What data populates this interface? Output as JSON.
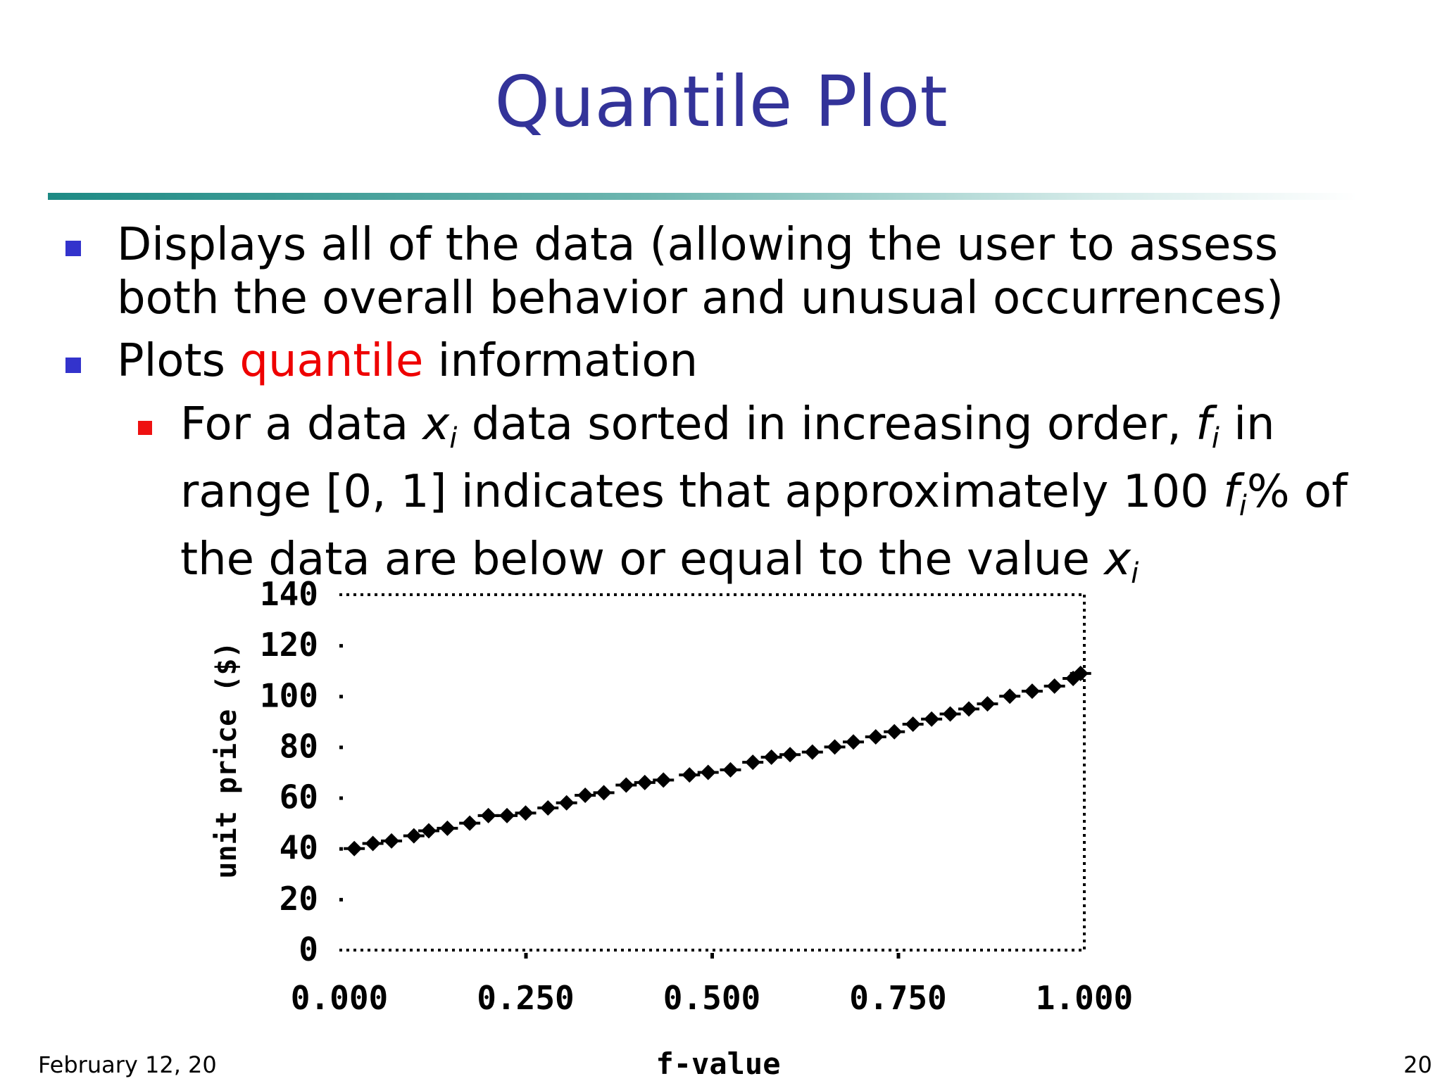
{
  "slide": {
    "title": "Quantile Plot",
    "bullets": [
      {
        "text": "Displays all of the data (allowing the user to assess both the overall behavior and unusual occurrences)"
      },
      {
        "text_before": "Plots ",
        "highlight": "quantile",
        "text_after": " information"
      }
    ],
    "sub_bullet": {
      "t1": "For a data ",
      "v1": "x",
      "s1": "i",
      "t2": " data sorted in increasing order, ",
      "v2": "f",
      "s2": "i",
      "t3": "  in range [0, 1] indicates that approximately 100 ",
      "v3": "f",
      "s3": "i",
      "t4": "% of the data are below or equal to the value ",
      "v4": "x",
      "s4": "i"
    },
    "footer_date": "February 12, 20",
    "page_number": "20"
  },
  "colors": {
    "title": "#333399",
    "highlight": "#ee0000",
    "bullet": "#3333cc",
    "sub_bullet": "#ee1111",
    "rule": "#1d8a84"
  },
  "chart_data": {
    "type": "scatter",
    "xlabel": "f-value",
    "ylabel": "unit price ($)",
    "xlim": [
      0,
      1
    ],
    "ylim": [
      0,
      140
    ],
    "x_ticks": [
      {
        "value": 0,
        "label": "0.000"
      },
      {
        "value": 0.25,
        "label": "0.250"
      },
      {
        "value": 0.5,
        "label": "0.500"
      },
      {
        "value": 0.75,
        "label": "0.750"
      },
      {
        "value": 1,
        "label": "1.000"
      }
    ],
    "y_ticks": [
      {
        "value": 0,
        "label": "0"
      },
      {
        "value": 20,
        "label": "20"
      },
      {
        "value": 40,
        "label": "40"
      },
      {
        "value": 60,
        "label": "60"
      },
      {
        "value": 80,
        "label": "80"
      },
      {
        "value": 100,
        "label": "100"
      },
      {
        "value": 120,
        "label": "120"
      },
      {
        "value": 140,
        "label": "140"
      }
    ],
    "grid": false,
    "marker": "diamond",
    "points": [
      {
        "x": 0.02,
        "y": 40
      },
      {
        "x": 0.045,
        "y": 42
      },
      {
        "x": 0.07,
        "y": 43
      },
      {
        "x": 0.1,
        "y": 45
      },
      {
        "x": 0.12,
        "y": 47
      },
      {
        "x": 0.145,
        "y": 48
      },
      {
        "x": 0.175,
        "y": 50
      },
      {
        "x": 0.2,
        "y": 53
      },
      {
        "x": 0.225,
        "y": 53
      },
      {
        "x": 0.25,
        "y": 54
      },
      {
        "x": 0.28,
        "y": 56
      },
      {
        "x": 0.305,
        "y": 58
      },
      {
        "x": 0.33,
        "y": 61
      },
      {
        "x": 0.355,
        "y": 62
      },
      {
        "x": 0.385,
        "y": 65
      },
      {
        "x": 0.41,
        "y": 66
      },
      {
        "x": 0.435,
        "y": 67
      },
      {
        "x": 0.47,
        "y": 69
      },
      {
        "x": 0.495,
        "y": 70
      },
      {
        "x": 0.525,
        "y": 71
      },
      {
        "x": 0.555,
        "y": 74
      },
      {
        "x": 0.58,
        "y": 76
      },
      {
        "x": 0.605,
        "y": 77
      },
      {
        "x": 0.635,
        "y": 78
      },
      {
        "x": 0.665,
        "y": 80
      },
      {
        "x": 0.69,
        "y": 82
      },
      {
        "x": 0.72,
        "y": 84
      },
      {
        "x": 0.745,
        "y": 86
      },
      {
        "x": 0.77,
        "y": 89
      },
      {
        "x": 0.795,
        "y": 91
      },
      {
        "x": 0.82,
        "y": 93
      },
      {
        "x": 0.845,
        "y": 95
      },
      {
        "x": 0.87,
        "y": 97
      },
      {
        "x": 0.9,
        "y": 100
      },
      {
        "x": 0.93,
        "y": 102
      },
      {
        "x": 0.96,
        "y": 104
      },
      {
        "x": 0.985,
        "y": 107
      },
      {
        "x": 0.995,
        "y": 109
      }
    ]
  }
}
